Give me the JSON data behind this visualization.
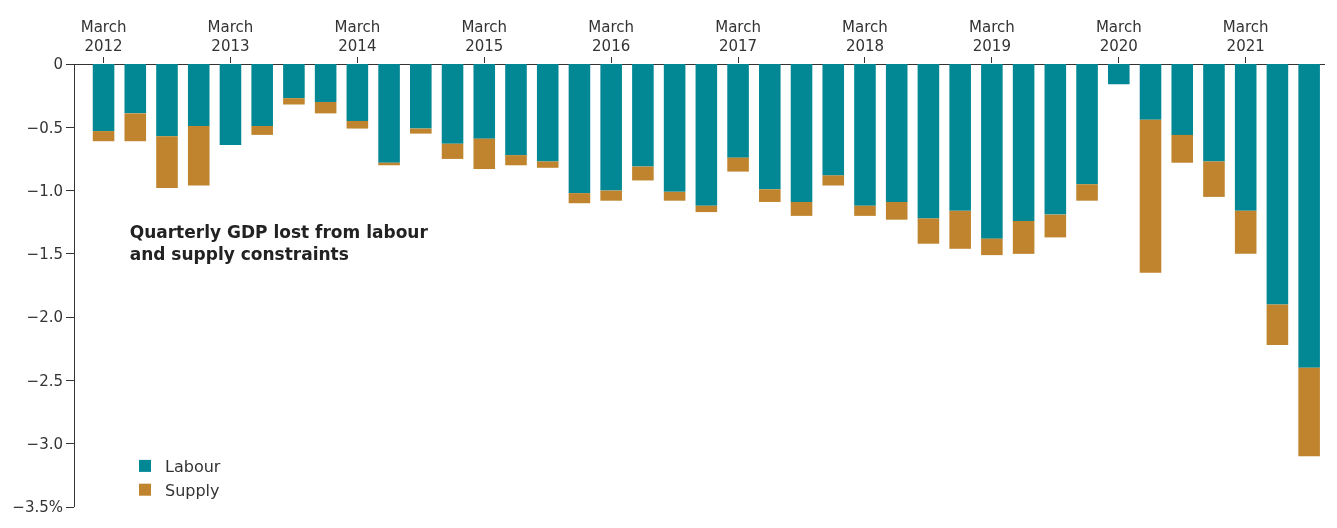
{
  "chart_data": {
    "type": "bar",
    "title": "Quarterly GDP lost from labour and supply constraints",
    "categories": [
      "March\n2012",
      null,
      null,
      null,
      "March\n2013",
      null,
      null,
      null,
      "March\n2014",
      null,
      null,
      null,
      "March\n2015",
      null,
      null,
      null,
      "March\n2016",
      null,
      null,
      null,
      "March\n2017",
      null,
      null,
      null,
      "March\n2018",
      null,
      null,
      null,
      "March\n2019",
      null,
      null,
      null,
      "March\n2020",
      null,
      null,
      null,
      "March\n2021",
      null,
      null
    ],
    "stacked": true,
    "series": [
      {
        "name": "Labour",
        "color": "#028794",
        "values": [
          -0.53,
          -0.39,
          -0.57,
          -0.49,
          -0.64,
          -0.49,
          -0.27,
          -0.3,
          -0.45,
          -0.78,
          -0.51,
          -0.63,
          -0.59,
          -0.72,
          -0.77,
          -1.02,
          -1.0,
          -0.81,
          -1.01,
          -1.12,
          -0.74,
          -0.99,
          -1.09,
          -0.88,
          -1.12,
          -1.09,
          -1.22,
          -1.16,
          -1.38,
          -1.24,
          -1.19,
          -0.95,
          -0.16,
          -0.44,
          -0.56,
          -0.77,
          -1.16,
          -1.9,
          -2.4
        ]
      },
      {
        "name": "Supply",
        "color": "#bf842d",
        "values": [
          -0.08,
          -0.22,
          -0.41,
          -0.47,
          0,
          -0.07,
          -0.05,
          -0.09,
          -0.06,
          -0.02,
          -0.04,
          -0.12,
          -0.24,
          -0.08,
          -0.05,
          -0.08,
          -0.08,
          -0.11,
          -0.07,
          -0.05,
          -0.11,
          -0.1,
          -0.11,
          -0.08,
          -0.08,
          -0.14,
          -0.2,
          -0.3,
          -0.13,
          -0.26,
          -0.18,
          -0.13,
          0,
          -1.21,
          -0.22,
          -0.28,
          -0.34,
          -0.32,
          -0.7
        ]
      }
    ],
    "ylim": [
      -3.5,
      0
    ],
    "yticks": [
      0,
      {
        "value": -0.5,
        "label": "−0.5"
      },
      {
        "value": -1.0,
        "label": "−1.0"
      },
      {
        "value": -1.5,
        "label": "−1.5"
      },
      {
        "value": -2.0,
        "label": "−2.0"
      },
      {
        "value": -2.5,
        "label": "−2.5"
      },
      {
        "value": -3.0,
        "label": "−3.0"
      },
      {
        "value": -3.5,
        "label": "−3.5%"
      }
    ],
    "legend": "bottom left"
  }
}
